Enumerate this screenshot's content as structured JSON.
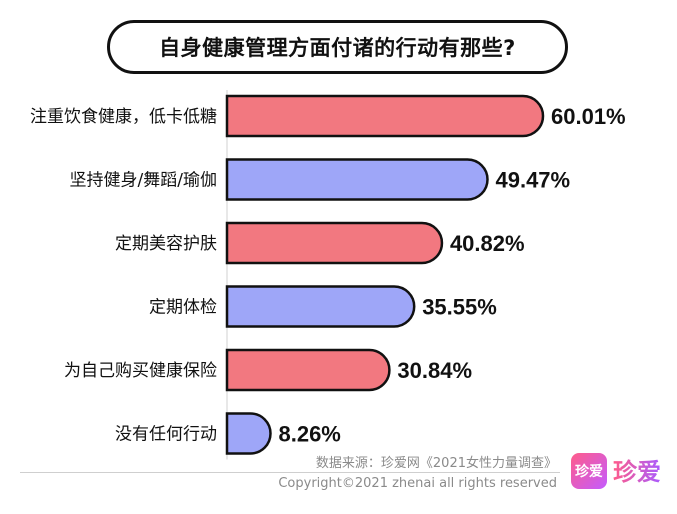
{
  "chart_data": {
    "type": "bar",
    "orientation": "horizontal",
    "title": "自身健康管理方面付诸的行动有那些?",
    "categories": [
      "注重饮食健康，低卡低糖",
      "坚持健身/舞蹈/瑜伽",
      "定期美容护肤",
      "定期体检",
      "为自己购买健康保险",
      "没有任何行动"
    ],
    "values": [
      60.01,
      49.47,
      40.82,
      35.55,
      30.84,
      8.26
    ],
    "value_labels": [
      "60.01%",
      "49.47%",
      "40.82%",
      "35.55%",
      "30.84%",
      "8.26%"
    ],
    "colors": [
      "#f27880",
      "#9ea6f8",
      "#f27880",
      "#9ea6f8",
      "#f27880",
      "#9ea6f8"
    ],
    "xlim": [
      0,
      60.01
    ],
    "grid": false,
    "legend": "none"
  },
  "footer": {
    "source": "数据来源：珍爱网《2021女性力量调查》",
    "copyright": "Copyright©2021  zhenai  all rights reserved"
  },
  "brand": {
    "badge_text": "珍爱",
    "name": "珍爱"
  }
}
